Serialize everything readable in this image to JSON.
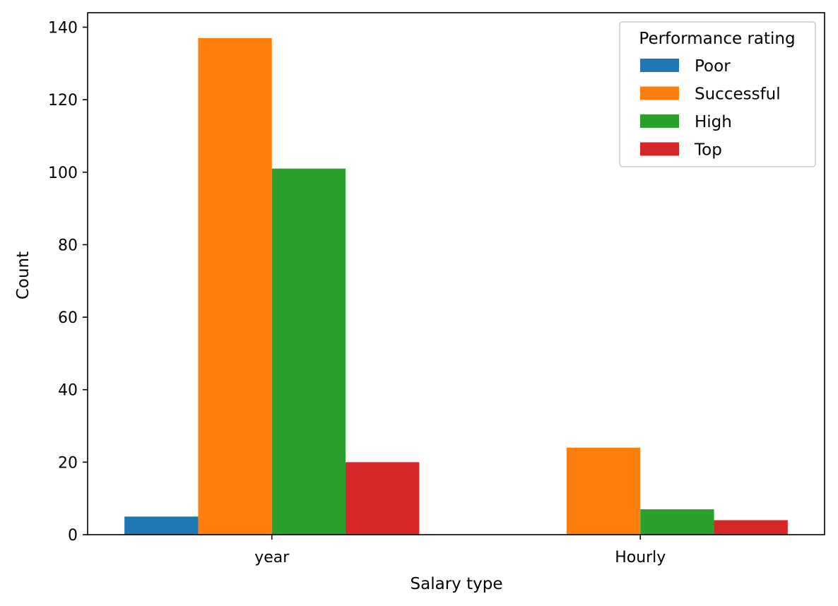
{
  "chart_data": {
    "type": "bar",
    "categories": [
      "year",
      "Hourly"
    ],
    "series": [
      {
        "name": "Poor",
        "values": [
          5,
          0
        ],
        "color": "#1f77b4"
      },
      {
        "name": "Successful",
        "values": [
          137,
          24
        ],
        "color": "#ff7f0e"
      },
      {
        "name": "High",
        "values": [
          101,
          7
        ],
        "color": "#2ca02c"
      },
      {
        "name": "Top",
        "values": [
          20,
          4
        ],
        "color": "#d62728"
      }
    ],
    "xlabel": "Salary type",
    "ylabel": "Count",
    "ylim": [
      0,
      144
    ],
    "yticks": [
      0,
      20,
      40,
      60,
      80,
      100,
      120,
      140
    ],
    "legend": {
      "title": "Performance rating",
      "placement": "top-right"
    },
    "grid": false
  }
}
